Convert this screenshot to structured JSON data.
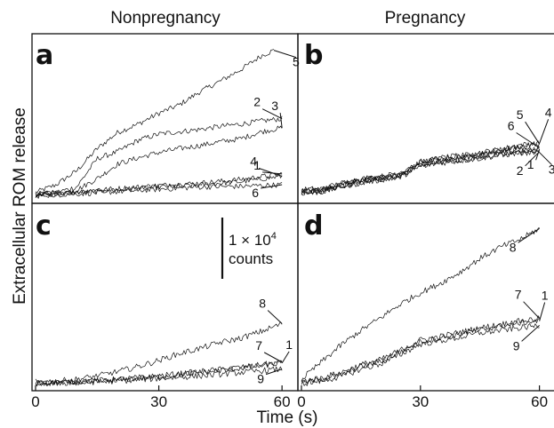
{
  "figure": {
    "column_titles": [
      "Nonpregnancy",
      "Pregnancy"
    ],
    "xlabel": "Time (s)",
    "ylabel": "Extracellular ROM release",
    "scale_bar": {
      "line1": "1 × 10",
      "exponent": "4",
      "line2": "counts",
      "value_counts": 10000
    }
  },
  "chart_data": [
    {
      "type": "line",
      "panel": "a",
      "title": "",
      "column": "Nonpregnancy",
      "xlim": [
        0,
        63
      ],
      "x_ticks": [],
      "xlabel": "",
      "ylabel": "Extracellular ROM release",
      "y_unit": "counts (relative)",
      "ylim": [
        0,
        20000
      ],
      "series": [
        {
          "name": "5",
          "x": [
            0,
            5,
            10,
            15,
            20,
            25,
            30,
            35,
            40,
            45,
            50,
            55,
            58
          ],
          "values": [
            500,
            1500,
            3300,
            6200,
            8300,
            9400,
            10800,
            11900,
            13600,
            15000,
            16500,
            18300,
            19000
          ]
        },
        {
          "name": "2",
          "x": [
            0,
            5,
            10,
            15,
            20,
            25,
            30,
            35,
            40,
            45,
            50,
            55,
            60
          ],
          "values": [
            200,
            500,
            1200,
            4900,
            5800,
            7300,
            8100,
            8400,
            8700,
            9100,
            9400,
            9800,
            10100
          ]
        },
        {
          "name": "3",
          "x": [
            0,
            5,
            10,
            15,
            20,
            25,
            30,
            35,
            40,
            45,
            50,
            55,
            60
          ],
          "values": [
            0,
            250,
            800,
            2300,
            4200,
            5000,
            5700,
            6200,
            6600,
            7100,
            7500,
            8400,
            8900
          ]
        },
        {
          "name": "4",
          "x": [
            0,
            10,
            20,
            30,
            40,
            50,
            60
          ],
          "values": [
            200,
            500,
            800,
            1200,
            1500,
            1900,
            2600
          ]
        },
        {
          "name": "1",
          "x": [
            0,
            10,
            20,
            30,
            40,
            50,
            60
          ],
          "values": [
            300,
            600,
            1000,
            1400,
            1700,
            2200,
            2900
          ]
        },
        {
          "name": "6",
          "x": [
            0,
            10,
            20,
            30,
            40,
            50,
            60
          ],
          "values": [
            100,
            300,
            600,
            900,
            1200,
            1300,
            1500
          ]
        }
      ]
    },
    {
      "type": "line",
      "panel": "b",
      "title": "",
      "column": "Pregnancy",
      "xlim": [
        0,
        63
      ],
      "x_ticks": [],
      "xlabel": "",
      "ylabel": "",
      "y_unit": "counts (relative)",
      "ylim": [
        0,
        20000
      ],
      "series": [
        {
          "name": "4",
          "x": [
            0,
            5,
            10,
            15,
            20,
            25,
            30,
            35,
            40,
            45,
            50,
            55,
            60
          ],
          "values": [
            800,
            900,
            1600,
            2100,
            2500,
            2900,
            4400,
            4900,
            5200,
            5700,
            6100,
            6700,
            6900
          ]
        },
        {
          "name": "5",
          "x": [
            0,
            5,
            10,
            15,
            20,
            25,
            30,
            35,
            40,
            45,
            50,
            55,
            60
          ],
          "values": [
            900,
            1000,
            1700,
            2300,
            2600,
            3000,
            4500,
            5000,
            5300,
            5600,
            6000,
            6500,
            6800
          ]
        },
        {
          "name": "6",
          "x": [
            0,
            5,
            10,
            15,
            20,
            25,
            30,
            35,
            40,
            45,
            50,
            55,
            60
          ],
          "values": [
            700,
            800,
            1500,
            2100,
            2400,
            2800,
            4300,
            4800,
            5000,
            5400,
            5800,
            6200,
            6300
          ]
        },
        {
          "name": "1",
          "x": [
            0,
            5,
            10,
            15,
            20,
            25,
            30,
            35,
            40,
            45,
            50,
            55,
            60
          ],
          "values": [
            600,
            700,
            1400,
            2000,
            2300,
            2700,
            4100,
            4600,
            4800,
            5200,
            5600,
            5900,
            6100
          ]
        },
        {
          "name": "2",
          "x": [
            0,
            5,
            10,
            15,
            20,
            25,
            30,
            35,
            40,
            45,
            50,
            55,
            60
          ],
          "values": [
            500,
            600,
            1300,
            1800,
            2200,
            2600,
            4000,
            4400,
            4700,
            5000,
            5400,
            5700,
            5800
          ]
        },
        {
          "name": "3",
          "x": [
            0,
            5,
            10,
            15,
            20,
            25,
            30,
            35,
            40,
            45,
            50,
            55,
            60
          ],
          "values": [
            400,
            500,
            1200,
            1700,
            2100,
            2500,
            3900,
            4300,
            4600,
            4900,
            5300,
            5600,
            5700
          ]
        }
      ]
    },
    {
      "type": "line",
      "panel": "c",
      "title": "",
      "column": "Nonpregnancy",
      "xlim": [
        0,
        63
      ],
      "x_ticks": [
        0,
        30,
        60
      ],
      "xlabel": "Time (s)",
      "ylabel": "Extracellular ROM release",
      "y_unit": "counts (relative)",
      "ylim": [
        0,
        20000
      ],
      "series": [
        {
          "name": "8",
          "x": [
            0,
            5,
            10,
            15,
            20,
            25,
            30,
            35,
            40,
            45,
            50,
            55,
            60
          ],
          "values": [
            200,
            300,
            500,
            900,
            1400,
            2000,
            2700,
            3500,
            4100,
            4800,
            5300,
            6100,
            7000
          ]
        },
        {
          "name": "7",
          "x": [
            0,
            10,
            20,
            30,
            40,
            50,
            60
          ],
          "values": [
            0,
            200,
            500,
            900,
            1400,
            1900,
            2500
          ]
        },
        {
          "name": "1",
          "x": [
            0,
            10,
            20,
            30,
            40,
            50,
            60
          ],
          "values": [
            0,
            150,
            400,
            800,
            1300,
            1800,
            2400
          ]
        },
        {
          "name": "9",
          "x": [
            0,
            10,
            20,
            30,
            40,
            50,
            60
          ],
          "values": [
            0,
            100,
            300,
            600,
            900,
            1300,
            1700
          ]
        }
      ]
    },
    {
      "type": "line",
      "panel": "d",
      "title": "",
      "column": "Pregnancy",
      "xlim": [
        0,
        63
      ],
      "x_ticks": [
        0,
        30,
        60
      ],
      "xlabel": "Time (s)",
      "ylabel": "",
      "y_unit": "counts (relative)",
      "ylim": [
        0,
        20000
      ],
      "series": [
        {
          "name": "8",
          "x": [
            0,
            5,
            10,
            15,
            20,
            25,
            30,
            35,
            40,
            45,
            50,
            55,
            60
          ],
          "values": [
            500,
            2500,
            4500,
            6200,
            7700,
            9300,
            10600,
            11700,
            13000,
            14600,
            15900,
            16800,
            18100
          ]
        },
        {
          "name": "7",
          "x": [
            0,
            5,
            10,
            15,
            20,
            25,
            30,
            35,
            40,
            45,
            50,
            55,
            60
          ],
          "values": [
            200,
            700,
            1300,
            2200,
            2800,
            3900,
            5100,
            5500,
            6000,
            6500,
            6900,
            7300,
            7600
          ]
        },
        {
          "name": "1",
          "x": [
            0,
            5,
            10,
            15,
            20,
            25,
            30,
            35,
            40,
            45,
            50,
            55,
            60
          ],
          "values": [
            100,
            500,
            1000,
            2000,
            2600,
            3700,
            4900,
            5300,
            5800,
            6300,
            6700,
            7100,
            7300
          ]
        },
        {
          "name": "9",
          "x": [
            0,
            5,
            10,
            15,
            20,
            25,
            30,
            35,
            40,
            45,
            50,
            55,
            60
          ],
          "values": [
            0,
            300,
            800,
            1700,
            2300,
            3400,
            4600,
            5000,
            5400,
            5900,
            6200,
            6500,
            6800
          ]
        }
      ]
    }
  ]
}
